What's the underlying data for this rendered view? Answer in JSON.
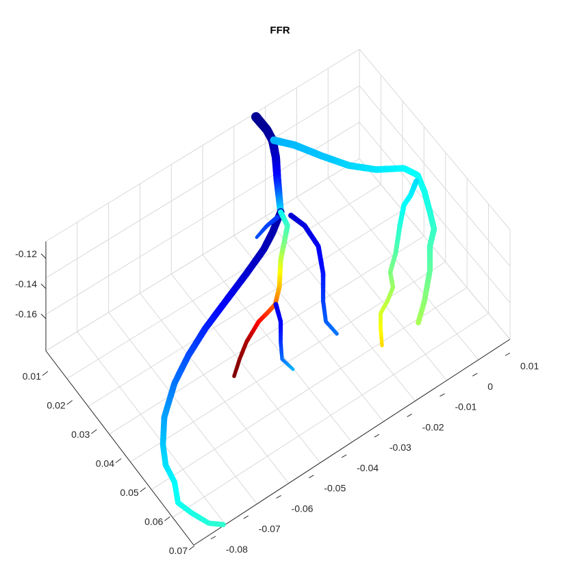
{
  "chart_data": {
    "type": "3d-scatter",
    "title": "FFR",
    "grid": true,
    "colormap": "jet",
    "view": "3d-oblique",
    "axes": {
      "x": {
        "label": "",
        "ticks": [
          "-0.08",
          "-0.07",
          "-0.06",
          "-0.05",
          "-0.04",
          "-0.03",
          "-0.02",
          "-0.01",
          "0",
          "0.01"
        ],
        "range": [
          -0.085,
          0.015
        ]
      },
      "y": {
        "label": "",
        "ticks": [
          "0.01",
          "0.02",
          "0.03",
          "0.04",
          "0.05",
          "0.06",
          "0.07"
        ],
        "range": [
          0.005,
          0.075
        ]
      },
      "z": {
        "label": "",
        "ticks": [
          "-0.12",
          "-0.14",
          "-0.16"
        ],
        "range": [
          -0.17,
          -0.11
        ]
      }
    },
    "vessels": [
      {
        "name": "",
        "values": [
          0.02,
          0.02,
          0.03,
          0.05,
          0.08,
          0.12,
          0.18,
          0.26,
          0.34
        ]
      },
      {
        "name": "",
        "values": [
          0.04,
          0.05,
          0.07,
          0.1,
          0.14,
          0.18,
          0.22,
          0.26,
          0.3,
          0.34,
          0.38,
          0.4,
          0.42
        ]
      },
      {
        "name": "",
        "values": [
          0.3,
          0.32,
          0.36,
          0.4,
          0.46,
          0.54
        ]
      },
      {
        "name": "",
        "values": [
          0.34,
          0.4,
          0.48,
          0.56,
          0.66
        ]
      },
      {
        "name": "",
        "values": [
          0.38,
          0.5,
          0.66,
          0.82,
          0.96,
          1.0
        ]
      },
      {
        "name": "",
        "values": [
          0.1,
          0.12,
          0.16,
          0.22,
          0.3
        ]
      },
      {
        "name": "",
        "values": [
          0.08,
          0.1,
          0.12,
          0.16,
          0.2,
          0.24
        ]
      },
      {
        "name": "",
        "values": [
          0.18,
          0.2
        ]
      }
    ]
  },
  "colors": {
    "gridline": "#d9d9d9",
    "axis": "#262626",
    "colormap_stops": [
      "#00008f",
      "#0000ff",
      "#00ffff",
      "#ffff00",
      "#ff0000",
      "#800000"
    ]
  }
}
